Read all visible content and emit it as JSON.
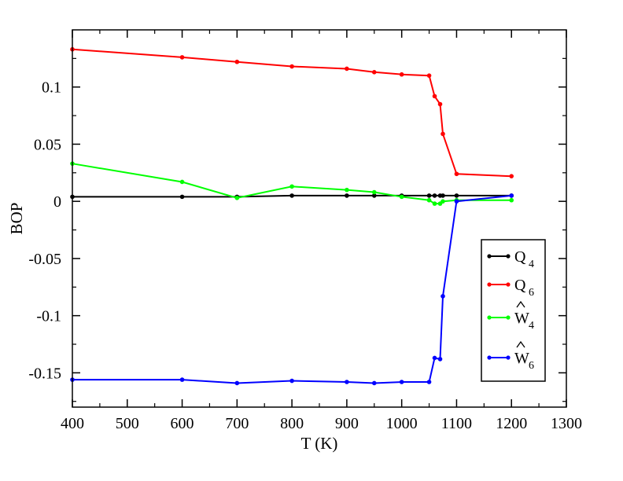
{
  "chart_data": {
    "type": "line",
    "xlabel": "T (K)",
    "ylabel": "BOP",
    "xlim": [
      400,
      1300
    ],
    "ylim": [
      -0.18,
      0.15
    ],
    "x_ticks": [
      {
        "value": 400,
        "label": "400"
      },
      {
        "value": 500,
        "label": "500"
      },
      {
        "value": 600,
        "label": "600"
      },
      {
        "value": 700,
        "label": "700"
      },
      {
        "value": 800,
        "label": "800"
      },
      {
        "value": 900,
        "label": "900"
      },
      {
        "value": 1000,
        "label": "1000"
      },
      {
        "value": 1100,
        "label": "1100"
      },
      {
        "value": 1200,
        "label": "1200"
      },
      {
        "value": 1300,
        "label": "1300"
      }
    ],
    "y_ticks": [
      {
        "value": 0.1,
        "label": "0.1"
      },
      {
        "value": 0.05,
        "label": "0.05"
      },
      {
        "value": 0,
        "label": "0"
      },
      {
        "value": -0.05,
        "label": "-0.05"
      },
      {
        "value": -0.1,
        "label": "-0.1"
      },
      {
        "value": -0.15,
        "label": "-0.15"
      }
    ],
    "legend_position": "right",
    "series": [
      {
        "name": "Q4",
        "legend_main": "Q",
        "legend_sub": "4",
        "hat": false,
        "color": "#000000",
        "x": [
          400,
          600,
          700,
          800,
          900,
          950,
          1000,
          1050,
          1060,
          1070,
          1075,
          1100,
          1200
        ],
        "y": [
          0.004,
          0.004,
          0.004,
          0.005,
          0.005,
          0.005,
          0.005,
          0.005,
          0.005,
          0.005,
          0.005,
          0.005,
          0.005
        ]
      },
      {
        "name": "Q6",
        "legend_main": "Q",
        "legend_sub": "6",
        "hat": false,
        "color": "#ff0000",
        "x": [
          400,
          600,
          700,
          800,
          900,
          950,
          1000,
          1050,
          1060,
          1070,
          1075,
          1100,
          1200
        ],
        "y": [
          0.133,
          0.126,
          0.122,
          0.118,
          0.116,
          0.113,
          0.111,
          0.11,
          0.092,
          0.085,
          0.059,
          0.024,
          0.022
        ]
      },
      {
        "name": "W4",
        "legend_main": "W",
        "legend_sub": "4",
        "hat": true,
        "color": "#00ff00",
        "x": [
          400,
          600,
          700,
          800,
          900,
          950,
          1000,
          1050,
          1060,
          1070,
          1075,
          1100,
          1200
        ],
        "y": [
          0.033,
          0.017,
          0.003,
          0.013,
          0.01,
          0.008,
          0.004,
          0.001,
          -0.002,
          -0.002,
          0.0,
          0.001,
          0.001
        ]
      },
      {
        "name": "W6",
        "legend_main": "W",
        "legend_sub": "6",
        "hat": true,
        "color": "#0000ff",
        "x": [
          400,
          600,
          700,
          800,
          900,
          950,
          1000,
          1050,
          1060,
          1070,
          1075,
          1100,
          1200
        ],
        "y": [
          -0.156,
          -0.156,
          -0.159,
          -0.157,
          -0.158,
          -0.159,
          -0.158,
          -0.158,
          -0.137,
          -0.138,
          -0.083,
          0.0,
          0.005
        ]
      }
    ]
  }
}
